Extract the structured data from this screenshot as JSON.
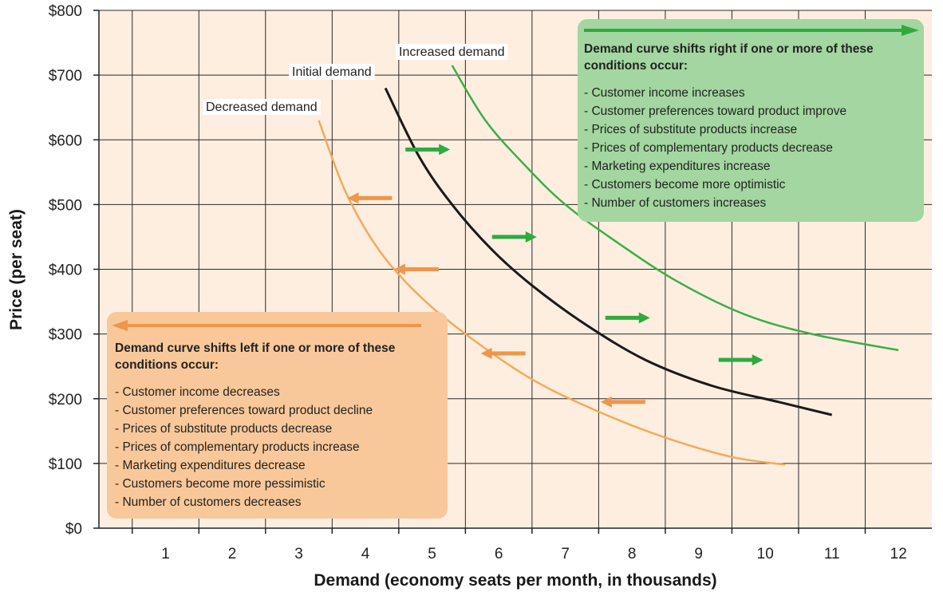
{
  "chart_data": {
    "type": "line",
    "xlabel": "Demand (economy seats per month, in thousands)",
    "ylabel": "Price (per seat)",
    "x_ticks": [
      "1",
      "2",
      "3",
      "4",
      "5",
      "6",
      "7",
      "8",
      "9",
      "10",
      "11",
      "12"
    ],
    "y_ticks": [
      "$0",
      "$100",
      "$200",
      "$300",
      "$400",
      "$500",
      "$600",
      "$700",
      "$800"
    ],
    "xlim": [
      0,
      12.5
    ],
    "ylim": [
      0,
      800
    ],
    "grid": true,
    "series": [
      {
        "name": "Decreased demand",
        "color": "#f5a95a",
        "points": [
          [
            3.3,
            630
          ],
          [
            3.7,
            520
          ],
          [
            4.2,
            430
          ],
          [
            4.8,
            360
          ],
          [
            5.5,
            300
          ],
          [
            6.5,
            230
          ],
          [
            7.5,
            180
          ],
          [
            8.5,
            140
          ],
          [
            9.5,
            110
          ],
          [
            10.3,
            98
          ]
        ]
      },
      {
        "name": "Initial demand",
        "color": "#1a1a1a",
        "points": [
          [
            4.3,
            680
          ],
          [
            4.8,
            575
          ],
          [
            5.3,
            500
          ],
          [
            5.9,
            430
          ],
          [
            6.5,
            375
          ],
          [
            7.3,
            315
          ],
          [
            8.2,
            260
          ],
          [
            9.2,
            220
          ],
          [
            10.2,
            195
          ],
          [
            11.0,
            175
          ]
        ]
      },
      {
        "name": "Increased demand",
        "color": "#3cae48",
        "points": [
          [
            5.3,
            715
          ],
          [
            5.8,
            630
          ],
          [
            6.4,
            560
          ],
          [
            7.0,
            500
          ],
          [
            7.8,
            440
          ],
          [
            8.7,
            380
          ],
          [
            9.7,
            330
          ],
          [
            10.7,
            300
          ],
          [
            12.0,
            275
          ]
        ]
      }
    ]
  },
  "right_box": {
    "heading": "Demand curve shifts right if one or more of these conditions occur:",
    "items": [
      "Customer income increases",
      "Customer preferences toward product improve",
      "Prices of substitute products increase",
      "Prices of complementary products decrease",
      "Marketing expenditures increase",
      "Customers become more optimistic",
      "Number of customers increases"
    ],
    "color": "#a3d6a0",
    "arrow_color": "#2eaa3f"
  },
  "left_box": {
    "heading": "Demand curve shifts left if one or more of these conditions occur:",
    "items": [
      "Customer income decreases",
      "Customer preferences toward product decline",
      "Prices of substitute products decrease",
      "Prices of complementary products increase",
      "Marketing expenditures decrease",
      "Customers become more pessimistic",
      "Number of customers decreases"
    ],
    "color": "#f9c89a",
    "arrow_color": "#f0954a"
  },
  "shift_arrows": {
    "right": [
      [
        4.6,
        585
      ],
      [
        5.9,
        450
      ],
      [
        7.6,
        325
      ],
      [
        9.3,
        260
      ]
    ],
    "left": [
      [
        4.4,
        510
      ],
      [
        5.1,
        400
      ],
      [
        6.4,
        270
      ],
      [
        8.2,
        195
      ]
    ]
  },
  "plot_background": "#fdeee0",
  "grid_color": "#2a2a2a"
}
